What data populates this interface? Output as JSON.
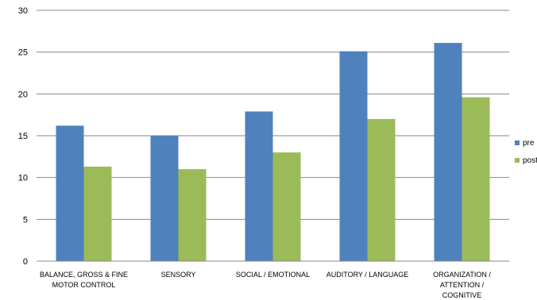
{
  "chart_data": {
    "type": "bar",
    "title": "",
    "xlabel": "",
    "ylabel": "",
    "categories": [
      [
        "BALANCE, GROSS & FINE",
        "MOTOR CONTROL"
      ],
      [
        "SENSORY"
      ],
      [
        "SOCIAL / EMOTIONAL"
      ],
      [
        "AUDITORY / LANGUAGE"
      ],
      [
        "ORGANIZATION /",
        "ATTENTION /",
        "COGNITIVE"
      ]
    ],
    "series": [
      {
        "name": "pre",
        "color": "#4F81BD",
        "values": [
          16.2,
          15.0,
          17.9,
          25.1,
          26.1
        ]
      },
      {
        "name": "post",
        "color": "#9BBB59",
        "values": [
          11.3,
          11.0,
          13.0,
          17.0,
          19.6
        ]
      }
    ],
    "ylim": [
      0,
      30
    ],
    "yticks": [
      "0",
      "5",
      "10",
      "15",
      "20",
      "25",
      "30"
    ],
    "grid": true,
    "legend_position": "right"
  }
}
